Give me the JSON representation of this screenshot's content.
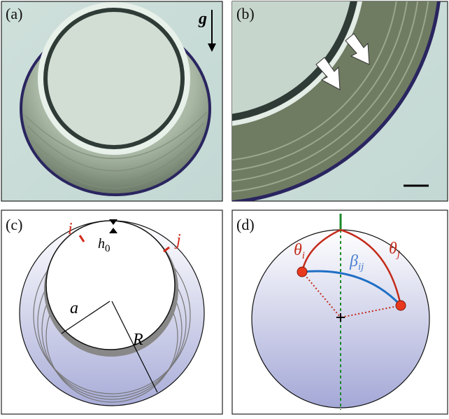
{
  "panels": {
    "a": {
      "label": "(a)",
      "gravity": "g"
    },
    "b": {
      "label": "(b)"
    },
    "c": {
      "label": "(c)",
      "site_i": "i",
      "site_j": "j",
      "thickness": {
        "base": "h",
        "sub": "0"
      },
      "inner_radius": "a",
      "outer_radius": "R"
    },
    "d": {
      "label": "(d)",
      "theta_i": {
        "base": "θ",
        "sub": "i"
      },
      "theta_j": {
        "base": "θ",
        "sub": "j"
      },
      "beta_ij": {
        "base": "β",
        "sub": "ij"
      }
    }
  }
}
